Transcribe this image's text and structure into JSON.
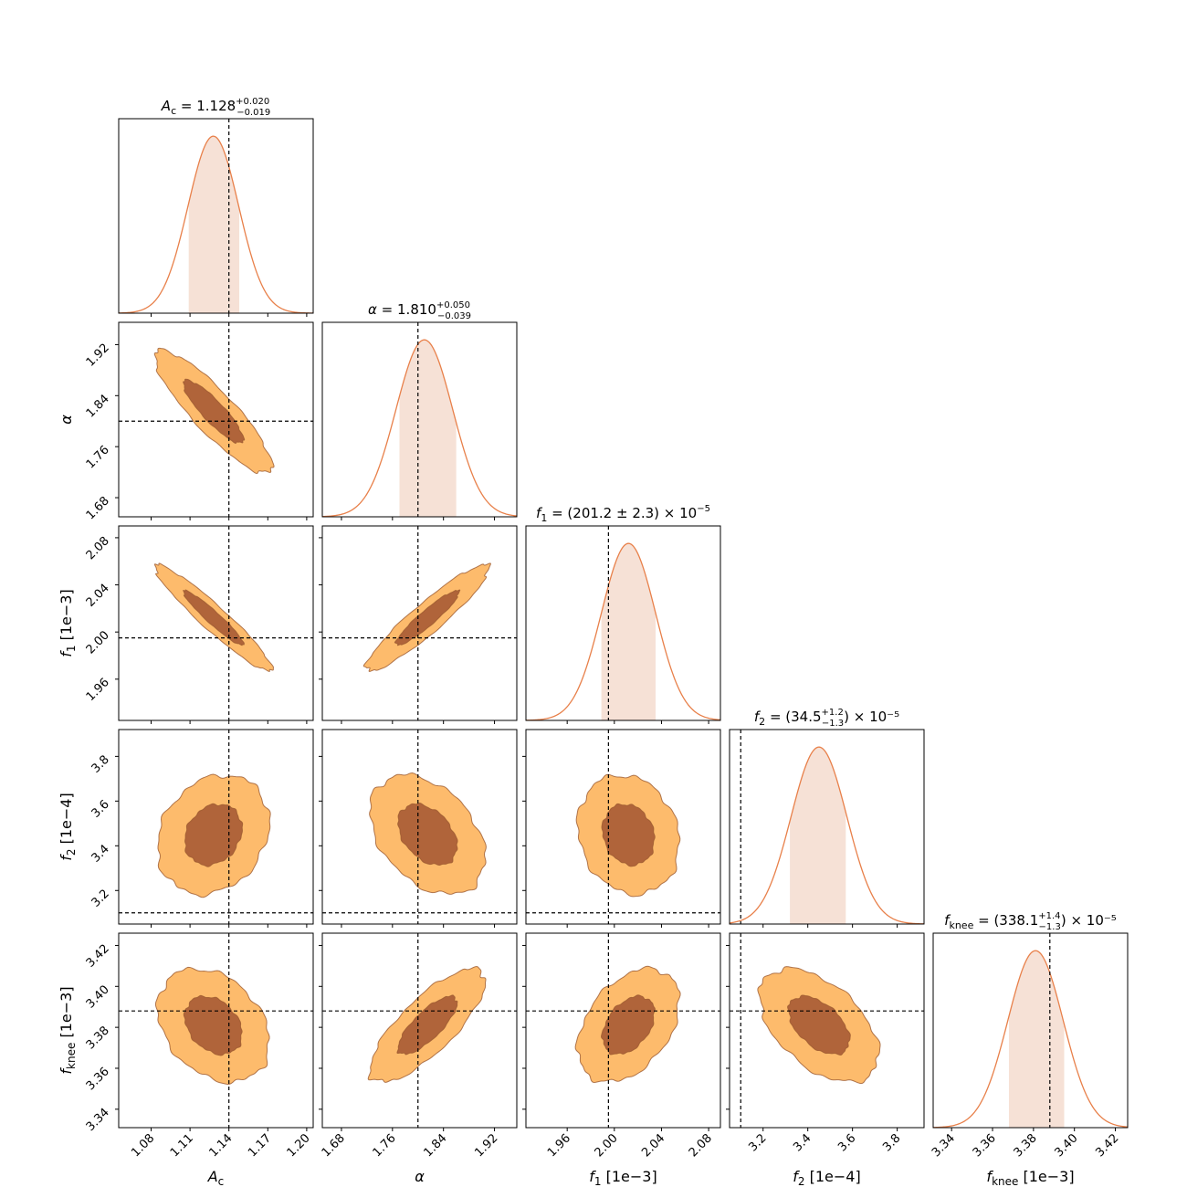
{
  "chart_data": {
    "type": "corner",
    "parameters": [
      {
        "key": "Ac",
        "label": "A_c",
        "label_main": "A",
        "label_sub": "c",
        "label_unit": "",
        "title_main": "A",
        "title_sub": "c",
        "title_mid": " = 1.128",
        "title_sup": "+0.020",
        "title_low": "−0.019",
        "title_tail": "",
        "range": [
          1.055,
          1.205
        ],
        "ticks": [
          1.08,
          1.11,
          1.14,
          1.17,
          1.2
        ],
        "tick_labels": [
          "1.08",
          "1.11",
          "1.14",
          "1.17",
          "1.20"
        ],
        "truth": 1.14,
        "median": 1.128,
        "sigma_plus": 0.02,
        "sigma_minus": 0.019,
        "band": [
          1.109,
          1.148
        ]
      },
      {
        "key": "alpha",
        "label": "α",
        "label_main": "α",
        "label_sub": "",
        "label_unit": "",
        "title_main": "α",
        "title_sub": "",
        "title_mid": " = 1.810",
        "title_sup": "+0.050",
        "title_low": "−0.039",
        "title_tail": "",
        "range": [
          1.65,
          1.955
        ],
        "ticks": [
          1.68,
          1.76,
          1.84,
          1.92
        ],
        "tick_labels": [
          "1.68",
          "1.76",
          "1.84",
          "1.92"
        ],
        "truth": 1.8,
        "median": 1.81,
        "sigma_plus": 0.05,
        "sigma_minus": 0.039,
        "band": [
          1.771,
          1.86
        ]
      },
      {
        "key": "f1",
        "label": "f_1 [1e−3]",
        "label_main": "f",
        "label_sub": "1",
        "label_unit": " [1e−3]",
        "title_main": "f",
        "title_sub": "1",
        "title_mid": " = (201.2 ± 2.3) × 10",
        "title_sup": "",
        "title_low": "",
        "title_tail": "−5",
        "range": [
          1.925,
          2.09
        ],
        "ticks": [
          1.96,
          2.0,
          2.04,
          2.08
        ],
        "tick_labels": [
          "1.96",
          "2.00",
          "2.04",
          "2.08"
        ],
        "truth": 1.995,
        "median": 2.012,
        "sigma_plus": 0.023,
        "sigma_minus": 0.023,
        "band": [
          1.989,
          2.035
        ]
      },
      {
        "key": "f2",
        "label": "f_2 [1e−4]",
        "label_main": "f",
        "label_sub": "2",
        "label_unit": " [1e−4]",
        "title_main": "f",
        "title_sub": "2",
        "title_mid": " = (34.5",
        "title_sup": "+1.2",
        "title_low": "−1.3",
        "title_tail": ") × 10⁻⁵",
        "range": [
          3.05,
          3.92
        ],
        "ticks": [
          3.2,
          3.4,
          3.6,
          3.8
        ],
        "tick_labels": [
          "3.2",
          "3.4",
          "3.6",
          "3.8"
        ],
        "truth": 3.1,
        "median": 3.45,
        "sigma_plus": 0.12,
        "sigma_minus": 0.13,
        "band": [
          3.32,
          3.57
        ]
      },
      {
        "key": "fknee",
        "label": "f_knee [1e−3]",
        "label_main": "f",
        "label_sub": "knee",
        "label_unit": " [1e−3]",
        "title_main": "f",
        "title_sub": "knee",
        "title_mid": " = (338.1",
        "title_sup": "+1.4",
        "title_low": "−1.3",
        "title_tail": ") × 10⁻⁵",
        "range": [
          3.331,
          3.426
        ],
        "ticks": [
          3.34,
          3.36,
          3.38,
          3.4,
          3.42
        ],
        "tick_labels": [
          "3.34",
          "3.36",
          "3.38",
          "3.40",
          "3.42"
        ],
        "truth": 3.388,
        "median": 3.381,
        "sigma_plus": 0.014,
        "sigma_minus": 0.013,
        "band": [
          3.368,
          3.395
        ]
      }
    ],
    "pairs": [
      {
        "x": 0,
        "y": 1,
        "center": [
          1.128,
          1.815
        ],
        "sx": 0.022,
        "sy": 0.047,
        "rho": -0.88
      },
      {
        "x": 0,
        "y": 2,
        "center": [
          1.128,
          2.012
        ],
        "sx": 0.022,
        "sy": 0.022,
        "rho": -0.95
      },
      {
        "x": 1,
        "y": 2,
        "center": [
          1.815,
          2.012
        ],
        "sx": 0.047,
        "sy": 0.022,
        "rho": 0.93
      },
      {
        "x": 0,
        "y": 3,
        "center": [
          1.128,
          3.45
        ],
        "sx": 0.021,
        "sy": 0.13,
        "rho": 0.2
      },
      {
        "x": 1,
        "y": 3,
        "center": [
          1.815,
          3.45
        ],
        "sx": 0.044,
        "sy": 0.13,
        "rho": -0.38
      },
      {
        "x": 2,
        "y": 3,
        "center": [
          2.012,
          3.45
        ],
        "sx": 0.021,
        "sy": 0.13,
        "rho": -0.15
      },
      {
        "x": 0,
        "y": 4,
        "center": [
          1.128,
          3.381
        ],
        "sx": 0.021,
        "sy": 0.0135,
        "rho": -0.3
      },
      {
        "x": 1,
        "y": 4,
        "center": [
          1.815,
          3.381
        ],
        "sx": 0.044,
        "sy": 0.0135,
        "rho": 0.78
      },
      {
        "x": 2,
        "y": 4,
        "center": [
          2.012,
          3.381
        ],
        "sx": 0.021,
        "sy": 0.0135,
        "rho": 0.4
      },
      {
        "x": 3,
        "y": 4,
        "center": [
          3.45,
          3.381
        ],
        "sx": 0.13,
        "sy": 0.0135,
        "rho": -0.5
      }
    ],
    "contour_levels": [
      "1σ (39%)",
      "2σ (86%)"
    ],
    "colors": {
      "histogram_line": "#e8804a",
      "histogram_band": "#f6e1d6",
      "contour_inner": "#b0643a",
      "contour_outer": "#fdbb6c",
      "contour_edge": "#9c5a30",
      "truth_line": "#000000"
    }
  }
}
